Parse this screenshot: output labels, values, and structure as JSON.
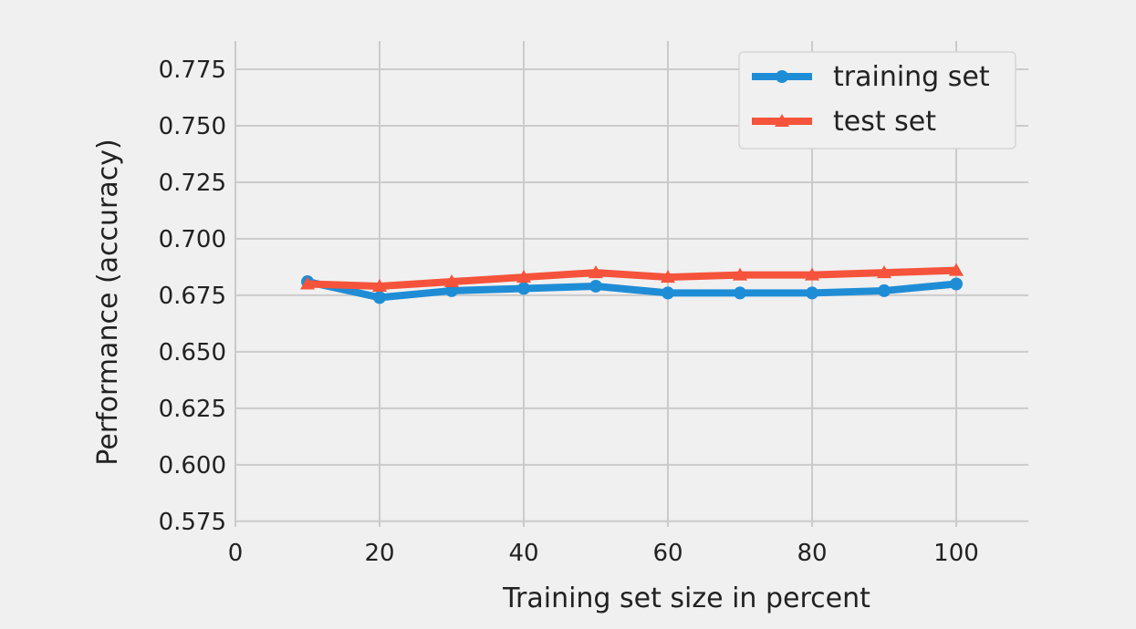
{
  "chart_data": {
    "type": "line",
    "title": "",
    "xlabel": "Training set size in percent",
    "ylabel": "Performance (accuracy)",
    "xlim": [
      0,
      110
    ],
    "ylim": [
      0.5725,
      0.7875
    ],
    "x_ticks": [
      "0",
      "20",
      "40",
      "60",
      "80",
      "100"
    ],
    "y_ticks": [
      "0.575",
      "0.600",
      "0.625",
      "0.650",
      "0.675",
      "0.700",
      "0.725",
      "0.750",
      "0.775"
    ],
    "grid": true,
    "legend_position": "upper right",
    "x": [
      10,
      20,
      30,
      40,
      50,
      60,
      70,
      80,
      90,
      100
    ],
    "series": [
      {
        "name": "training set",
        "color": "#1f8dd6",
        "marker": "circle",
        "values": [
          0.681,
          0.674,
          0.677,
          0.678,
          0.679,
          0.676,
          0.676,
          0.676,
          0.677,
          0.68
        ]
      },
      {
        "name": "test set",
        "color": "#f5533b",
        "marker": "triangle",
        "values": [
          0.68,
          0.679,
          0.681,
          0.683,
          0.685,
          0.683,
          0.684,
          0.684,
          0.685,
          0.686
        ]
      }
    ]
  }
}
